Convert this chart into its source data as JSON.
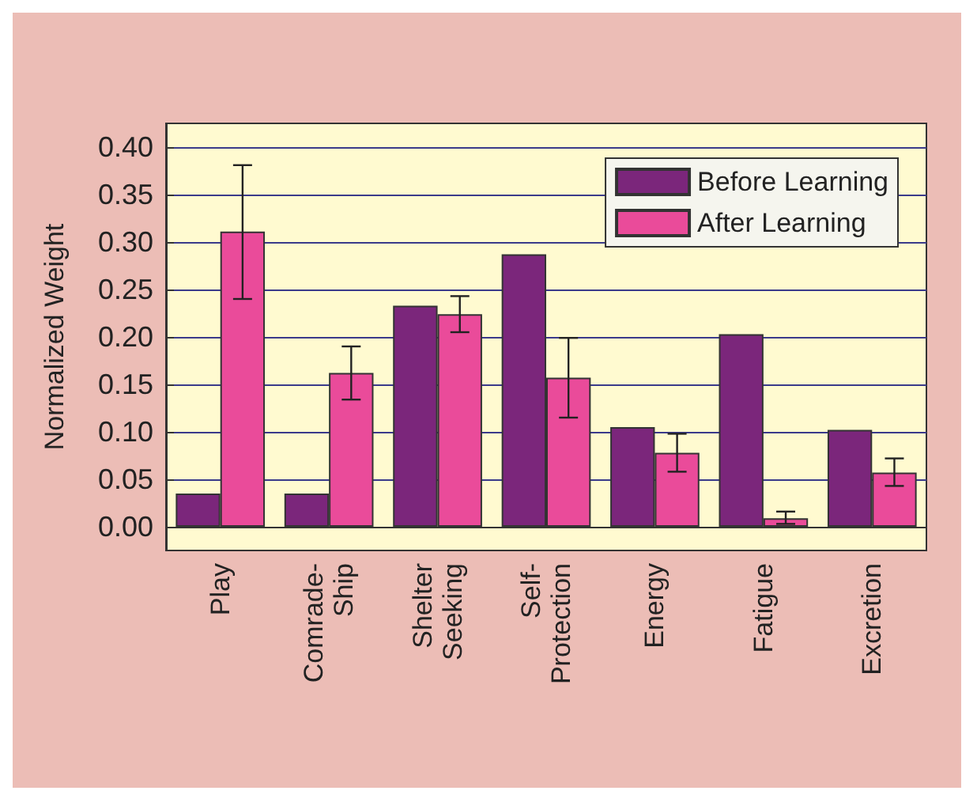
{
  "chart_data": {
    "type": "bar",
    "ylabel": "Normalized Weight",
    "categories": [
      "Play",
      "Comrade-\nShip",
      "Shelter\nSeeking",
      "Self-\nProtection",
      "Energy",
      "Fatigue",
      "Excretion"
    ],
    "series": [
      {
        "name": "Before Learning",
        "color": "#7b267b",
        "values": [
          0.035,
          0.035,
          0.233,
          0.287,
          0.105,
          0.203,
          0.102
        ]
      },
      {
        "name": "After Learning",
        "color": "#ea4b9a",
        "values": [
          0.311,
          0.162,
          0.224,
          0.157,
          0.078,
          0.009,
          0.057
        ],
        "errors": [
          [
            0.24,
            0.381
          ],
          [
            0.134,
            0.19
          ],
          [
            0.205,
            0.243
          ],
          [
            0.115,
            0.199
          ],
          [
            0.058,
            0.098
          ],
          [
            0.003,
            0.016
          ],
          [
            0.043,
            0.072
          ]
        ]
      }
    ],
    "ylim": [
      -0.025,
      0.425
    ],
    "yticks": [
      {
        "value": 0,
        "label": "0.00"
      },
      {
        "value": 0.05,
        "label": "0.05"
      },
      {
        "value": 0.1,
        "label": "0.10"
      },
      {
        "value": 0.15,
        "label": "0.15"
      },
      {
        "value": 0.2,
        "label": "0.20"
      },
      {
        "value": 0.25,
        "label": "0.25"
      },
      {
        "value": 0.3,
        "label": "0.30"
      },
      {
        "value": 0.35,
        "label": "0.35"
      },
      {
        "value": 0.4,
        "label": "0.40"
      }
    ],
    "grid": "y",
    "legend": "top right"
  }
}
